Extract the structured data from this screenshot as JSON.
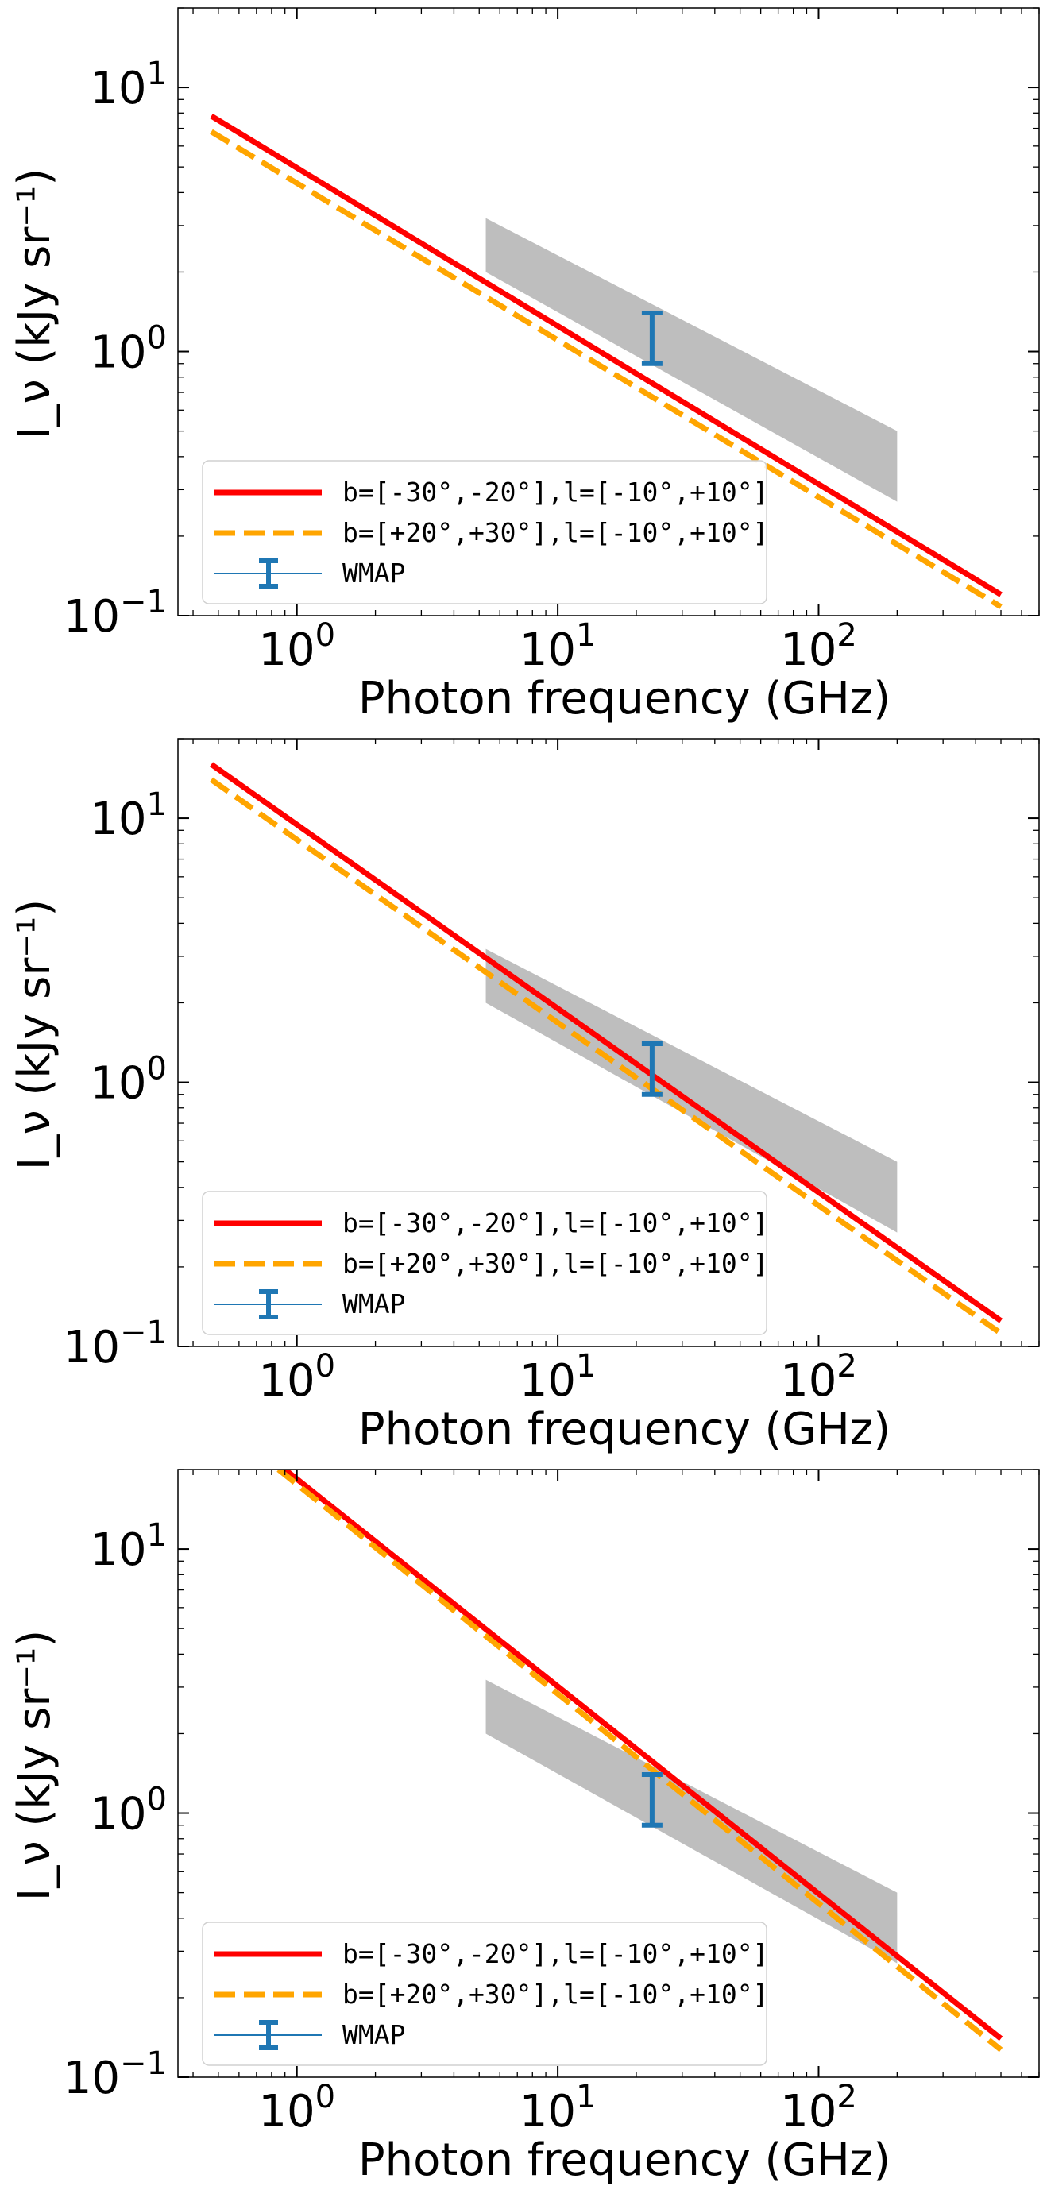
{
  "chart_data": [
    {
      "type": "line",
      "xlabel": "Photon frequency (GHz)",
      "ylabel": "I_ν (kJy sr⁻¹)",
      "x_scale": "log",
      "y_scale": "log",
      "xlim": [
        0.35,
        700
      ],
      "ylim": [
        0.1,
        20
      ],
      "x_ticks": [
        1,
        10,
        100
      ],
      "x_tick_labels": [
        {
          "base": "10",
          "exp": "0"
        },
        {
          "base": "10",
          "exp": "1"
        },
        {
          "base": "10",
          "exp": "2"
        }
      ],
      "y_ticks": [
        0.1,
        1,
        10
      ],
      "y_tick_labels": [
        {
          "base": "10",
          "exp": "−1"
        },
        {
          "base": "10",
          "exp": "0"
        },
        {
          "base": "10",
          "exp": "1"
        }
      ],
      "grid": false,
      "legend_position": "lower left",
      "series": [
        {
          "name": "b=[-30°,-20°],l=[-10°,+10°]",
          "style": "solid",
          "color": "#ff0000",
          "x": [
            0.47,
            500
          ],
          "y": [
            7.8,
            0.12
          ]
        },
        {
          "name": "b=[+20°,+30°],l=[-10°,+10°]",
          "style": "dashed",
          "color": "#ffa500",
          "x": [
            0.47,
            500
          ],
          "y": [
            6.8,
            0.108
          ]
        }
      ],
      "band": {
        "color": "#bebebe",
        "x": [
          5.3,
          200
        ],
        "upper": [
          3.2,
          0.5
        ],
        "lower": [
          2.0,
          0.27
        ]
      },
      "errorbar": {
        "name": "WMAP",
        "color": "#1f77b4",
        "x": 23,
        "y_low": 0.9,
        "y_high": 1.4
      }
    },
    {
      "type": "line",
      "xlabel": "Photon frequency (GHz)",
      "ylabel": "I_ν (kJy sr⁻¹)",
      "x_scale": "log",
      "y_scale": "log",
      "xlim": [
        0.35,
        700
      ],
      "ylim": [
        0.1,
        20
      ],
      "x_ticks": [
        1,
        10,
        100
      ],
      "x_tick_labels": [
        {
          "base": "10",
          "exp": "0"
        },
        {
          "base": "10",
          "exp": "1"
        },
        {
          "base": "10",
          "exp": "2"
        }
      ],
      "y_ticks": [
        0.1,
        1,
        10
      ],
      "y_tick_labels": [
        {
          "base": "10",
          "exp": "−1"
        },
        {
          "base": "10",
          "exp": "0"
        },
        {
          "base": "10",
          "exp": "1"
        }
      ],
      "grid": false,
      "legend_position": "lower left",
      "series": [
        {
          "name": "b=[-30°,-20°],l=[-10°,+10°]",
          "style": "solid",
          "color": "#ff0000",
          "x": [
            0.47,
            500
          ],
          "y": [
            16,
            0.125
          ]
        },
        {
          "name": "b=[+20°,+30°],l=[-10°,+10°]",
          "style": "dashed",
          "color": "#ffa500",
          "x": [
            0.47,
            500
          ],
          "y": [
            14,
            0.112
          ]
        }
      ],
      "band": {
        "color": "#bebebe",
        "x": [
          5.3,
          200
        ],
        "upper": [
          3.2,
          0.5
        ],
        "lower": [
          2.0,
          0.27
        ]
      },
      "errorbar": {
        "name": "WMAP",
        "color": "#1f77b4",
        "x": 23,
        "y_low": 0.9,
        "y_high": 1.4
      }
    },
    {
      "type": "line",
      "xlabel": "Photon frequency (GHz)",
      "ylabel": "I_ν (kJy sr⁻¹)",
      "x_scale": "log",
      "y_scale": "log",
      "xlim": [
        0.35,
        700
      ],
      "ylim": [
        0.1,
        20
      ],
      "x_ticks": [
        1,
        10,
        100
      ],
      "x_tick_labels": [
        {
          "base": "10",
          "exp": "0"
        },
        {
          "base": "10",
          "exp": "1"
        },
        {
          "base": "10",
          "exp": "2"
        }
      ],
      "y_ticks": [
        0.1,
        1,
        10
      ],
      "y_tick_labels": [
        {
          "base": "10",
          "exp": "−1"
        },
        {
          "base": "10",
          "exp": "0"
        },
        {
          "base": "10",
          "exp": "1"
        }
      ],
      "grid": false,
      "legend_position": "lower left",
      "series": [
        {
          "name": "b=[-30°,-20°],l=[-10°,+10°]",
          "style": "solid",
          "color": "#ff0000",
          "x": [
            0.9,
            500
          ],
          "y": [
            20,
            0.14
          ]
        },
        {
          "name": "b=[+20°,+30°],l=[-10°,+10°]",
          "style": "dashed",
          "color": "#ffa500",
          "x": [
            0.85,
            500
          ],
          "y": [
            20,
            0.127
          ]
        }
      ],
      "band": {
        "color": "#bebebe",
        "x": [
          5.3,
          200
        ],
        "upper": [
          3.2,
          0.5
        ],
        "lower": [
          2.0,
          0.27
        ]
      },
      "errorbar": {
        "name": "WMAP",
        "color": "#1f77b4",
        "x": 23,
        "y_low": 0.9,
        "y_high": 1.4
      }
    }
  ]
}
